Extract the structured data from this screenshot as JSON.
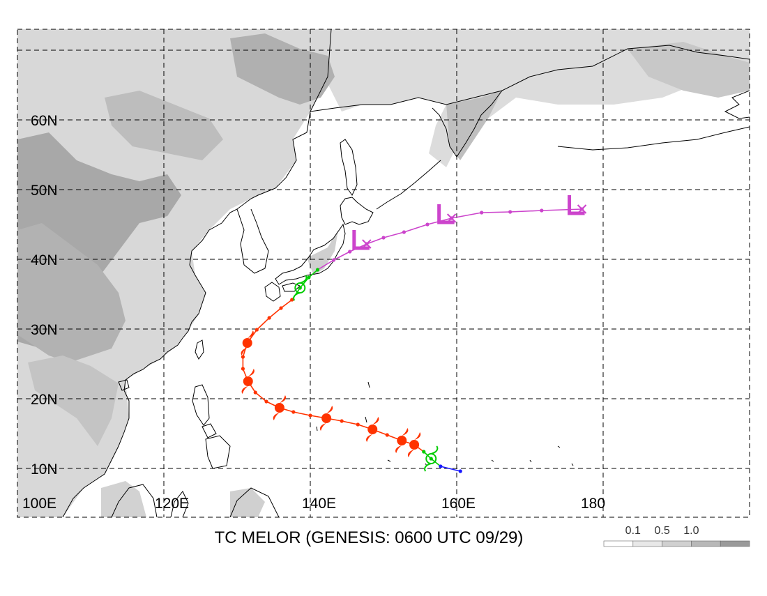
{
  "title": "TC MELOR (GENESIS: 0600 UTC 09/29)",
  "lat_labels": [
    "60N",
    "50N",
    "40N",
    "30N",
    "20N",
    "10N"
  ],
  "lon_labels": [
    "100E",
    "120E",
    "140E",
    "160E",
    "180"
  ],
  "legend": {
    "labels": [
      "0.1",
      "0.5",
      "1.0"
    ],
    "colors": [
      "#ffffff",
      "#e8e8e8",
      "#d0d0d0",
      "#b8b8b8",
      "#9a9a9a"
    ]
  },
  "track_colors": {
    "depression": "#1a1aff",
    "storm": "#00cc00",
    "typhoon": "#ff3300",
    "extratropical": "#cc44cc"
  },
  "map_extent": {
    "lon": [
      100,
      200
    ],
    "lat": [
      3,
      73
    ]
  },
  "track": [
    {
      "lon": 160.5,
      "lat": 9.6,
      "stage": "depression"
    },
    {
      "lon": 157.8,
      "lat": 10.3,
      "stage": "depression"
    },
    {
      "lon": 156.5,
      "lat": 11.4,
      "stage": "storm",
      "symbol": "storm"
    },
    {
      "lon": 155.5,
      "lat": 12.4,
      "stage": "storm"
    },
    {
      "lon": 154.2,
      "lat": 13.4,
      "stage": "typhoon",
      "symbol": "typhoon"
    },
    {
      "lon": 152.5,
      "lat": 14.0,
      "stage": "typhoon",
      "symbol": "typhoon"
    },
    {
      "lon": 150.5,
      "lat": 14.8,
      "stage": "typhoon"
    },
    {
      "lon": 148.5,
      "lat": 15.6,
      "stage": "typhoon",
      "symbol": "typhoon"
    },
    {
      "lon": 146.5,
      "lat": 16.3,
      "stage": "typhoon"
    },
    {
      "lon": 144.3,
      "lat": 16.8,
      "stage": "typhoon"
    },
    {
      "lon": 142.2,
      "lat": 17.2,
      "stage": "typhoon",
      "symbol": "typhoon"
    },
    {
      "lon": 140.0,
      "lat": 17.6,
      "stage": "typhoon"
    },
    {
      "lon": 137.7,
      "lat": 18.1,
      "stage": "typhoon"
    },
    {
      "lon": 135.8,
      "lat": 18.7,
      "stage": "typhoon",
      "symbol": "typhoon"
    },
    {
      "lon": 134.0,
      "lat": 19.6,
      "stage": "typhoon"
    },
    {
      "lon": 132.5,
      "lat": 20.9,
      "stage": "typhoon"
    },
    {
      "lon": 131.5,
      "lat": 22.5,
      "stage": "typhoon",
      "symbol": "typhoon"
    },
    {
      "lon": 130.8,
      "lat": 24.3,
      "stage": "typhoon"
    },
    {
      "lon": 130.8,
      "lat": 26.0,
      "stage": "typhoon"
    },
    {
      "lon": 131.4,
      "lat": 28.0,
      "stage": "typhoon",
      "symbol": "typhoon"
    },
    {
      "lon": 132.7,
      "lat": 29.9,
      "stage": "typhoon"
    },
    {
      "lon": 134.4,
      "lat": 31.6,
      "stage": "typhoon"
    },
    {
      "lon": 136.0,
      "lat": 33.0,
      "stage": "typhoon"
    },
    {
      "lon": 137.5,
      "lat": 34.2,
      "stage": "typhoon"
    },
    {
      "lon": 138.6,
      "lat": 35.9,
      "stage": "storm",
      "symbol": "storm"
    },
    {
      "lon": 139.8,
      "lat": 37.4,
      "stage": "storm"
    },
    {
      "lon": 141.0,
      "lat": 38.5,
      "stage": "storm"
    },
    {
      "lon": 143.2,
      "lat": 39.9,
      "stage": "extratropical"
    },
    {
      "lon": 145.4,
      "lat": 41.1,
      "stage": "extratropical"
    },
    {
      "lon": 147.7,
      "lat": 42.2,
      "stage": "extratropical",
      "symbol": "low"
    },
    {
      "lon": 150.0,
      "lat": 43.1,
      "stage": "extratropical"
    },
    {
      "lon": 152.8,
      "lat": 43.9,
      "stage": "extratropical"
    },
    {
      "lon": 156.0,
      "lat": 45.0,
      "stage": "extratropical"
    },
    {
      "lon": 159.3,
      "lat": 45.9,
      "stage": "extratropical",
      "symbol": "low"
    },
    {
      "lon": 163.4,
      "lat": 46.7,
      "stage": "extratropical"
    },
    {
      "lon": 167.3,
      "lat": 46.8,
      "stage": "extratropical"
    },
    {
      "lon": 171.6,
      "lat": 47.0,
      "stage": "extratropical"
    },
    {
      "lon": 177.1,
      "lat": 47.2,
      "stage": "extratropical",
      "symbol": "low"
    }
  ]
}
